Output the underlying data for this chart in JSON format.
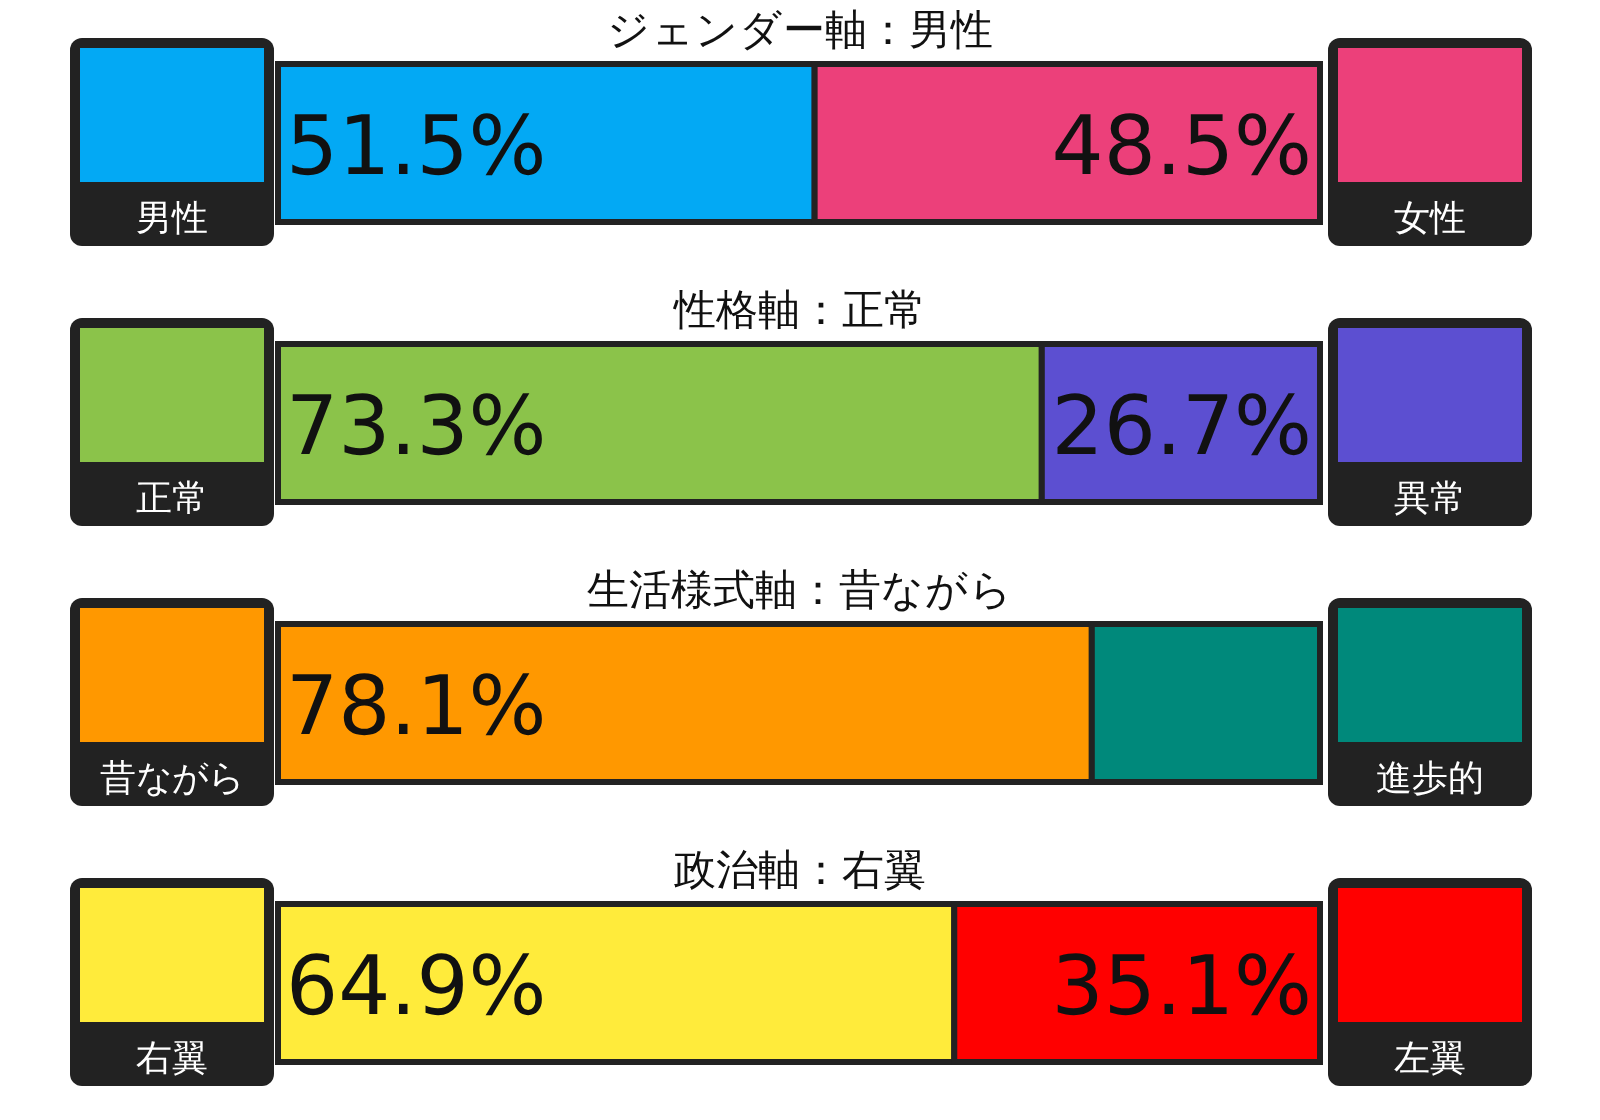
{
  "chart_data": [
    {
      "type": "bar",
      "orientation": "horizontal",
      "stacked": true,
      "title": "ジェンダー軸：男性",
      "categories": [
        null
      ],
      "xlim": [
        0,
        100
      ],
      "series": [
        {
          "name": "男性",
          "color": "#03a9f4",
          "values": [
            51.5
          ],
          "value_labels": [
            "51.5%"
          ]
        },
        {
          "name": "女性",
          "color": "#ec407a",
          "values": [
            48.5
          ],
          "value_labels": [
            "48.5%"
          ]
        }
      ]
    },
    {
      "type": "bar",
      "orientation": "horizontal",
      "stacked": true,
      "title": "性格軸：正常",
      "categories": [
        null
      ],
      "xlim": [
        0,
        100
      ],
      "series": [
        {
          "name": "正常",
          "color": "#8bc34a",
          "values": [
            73.3
          ],
          "value_labels": [
            "73.3%"
          ]
        },
        {
          "name": "異常",
          "color": "#5c4fd1",
          "values": [
            26.7
          ],
          "value_labels": [
            "26.7%"
          ]
        }
      ]
    },
    {
      "type": "bar",
      "orientation": "horizontal",
      "stacked": true,
      "title": "生活様式軸：昔ながら",
      "categories": [
        null
      ],
      "xlim": [
        0,
        100
      ],
      "series": [
        {
          "name": "昔ながら",
          "color": "#ff9800",
          "values": [
            78.1
          ],
          "value_labels": [
            "78.1%"
          ]
        },
        {
          "name": "進歩的",
          "color": "#00897b",
          "values": [
            21.9
          ],
          "value_labels": [
            null
          ]
        }
      ]
    },
    {
      "type": "bar",
      "orientation": "horizontal",
      "stacked": true,
      "title": "政治軸：右翼",
      "categories": [
        null
      ],
      "xlim": [
        0,
        100
      ],
      "series": [
        {
          "name": "右翼",
          "color": "#ffeb3b",
          "values": [
            64.9
          ],
          "value_labels": [
            "64.9%"
          ]
        },
        {
          "name": "左翼",
          "color": "#ff0000",
          "values": [
            35.1
          ],
          "value_labels": [
            "35.1%"
          ]
        }
      ]
    }
  ]
}
